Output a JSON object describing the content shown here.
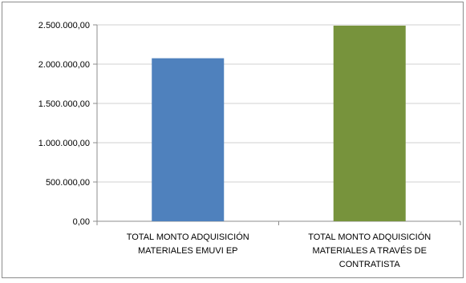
{
  "chart_data": {
    "type": "bar",
    "categories": [
      [
        "TOTAL MONTO ADQUISICIÓN",
        "MATERIALES EMUVI EP"
      ],
      [
        "TOTAL MONTO ADQUISICIÓN",
        "MATERIALES A TRAVÉS DE",
        "CONTRATISTA"
      ]
    ],
    "values": [
      2075000,
      2490000
    ],
    "bar_colors": [
      "#4f81bd",
      "#77933c"
    ],
    "ylim": [
      0,
      2500000
    ],
    "yticks": [
      0,
      500000,
      1000000,
      1500000,
      2000000,
      2500000
    ],
    "ytick_labels": [
      "0,00",
      "500.000,00",
      "1.000.000,00",
      "1.500.000,00",
      "2.000.000,00",
      "2.500.000,00"
    ],
    "grid": true,
    "title": "",
    "xlabel": "",
    "ylabel": ""
  }
}
